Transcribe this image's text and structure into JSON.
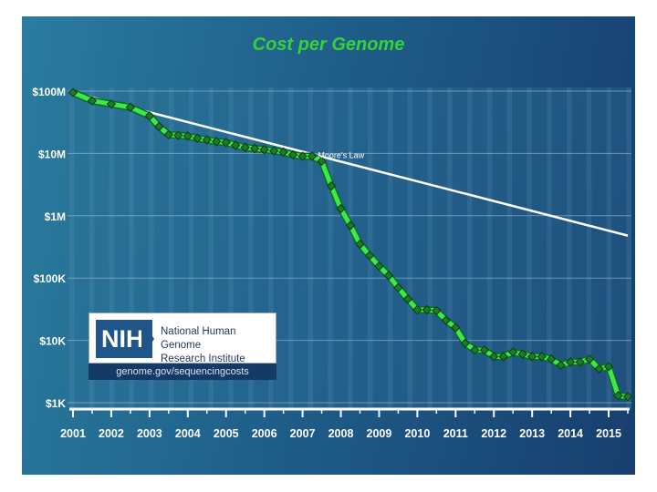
{
  "chart_data": {
    "type": "line",
    "title": "Cost per Genome",
    "scale": "log",
    "ylim": [
      1000,
      100000000
    ],
    "y_ticks": [
      {
        "value": 100000000,
        "label": "$100M"
      },
      {
        "value": 10000000,
        "label": "$10M"
      },
      {
        "value": 1000000,
        "label": "$1M"
      },
      {
        "value": 100000,
        "label": "$100K"
      },
      {
        "value": 10000,
        "label": "$10K"
      },
      {
        "value": 1000,
        "label": "$1K"
      }
    ],
    "xlim": [
      2001.0,
      2015.5
    ],
    "x_ticks": [
      "2001",
      "2002",
      "2003",
      "2004",
      "2005",
      "2006",
      "2007",
      "2008",
      "2009",
      "2010",
      "2011",
      "2012",
      "2013",
      "2014",
      "2015"
    ],
    "series": [
      {
        "name": "Cost per Genome",
        "color": "#3ee84a",
        "x": [
          2001.0,
          2001.5,
          2002.0,
          2002.5,
          2003.0,
          2003.25,
          2003.5,
          2003.75,
          2004.0,
          2004.25,
          2004.5,
          2004.75,
          2005.0,
          2005.25,
          2005.5,
          2005.75,
          2006.0,
          2006.25,
          2006.5,
          2006.75,
          2007.0,
          2007.25,
          2007.5,
          2007.75,
          2008.0,
          2008.25,
          2008.5,
          2008.75,
          2009.0,
          2009.25,
          2009.5,
          2009.75,
          2010.0,
          2010.25,
          2010.5,
          2010.75,
          2011.0,
          2011.25,
          2011.5,
          2011.75,
          2012.0,
          2012.25,
          2012.5,
          2012.75,
          2013.0,
          2013.25,
          2013.5,
          2013.75,
          2014.0,
          2014.25,
          2014.5,
          2014.75,
          2015.0,
          2015.25,
          2015.5
        ],
        "values": [
          95000000,
          70000000,
          62000000,
          55000000,
          40000000,
          27000000,
          20000000,
          19500000,
          19000000,
          17500000,
          16500000,
          15500000,
          15000000,
          13500000,
          12500000,
          12000000,
          11500000,
          11000000,
          10500000,
          9500000,
          9000000,
          9000000,
          7500000,
          3000000,
          1300000,
          700000,
          350000,
          230000,
          155000,
          110000,
          70000,
          46000,
          31000,
          31000,
          30000,
          21000,
          16000,
          9000,
          7000,
          7000,
          5500,
          5500,
          6500,
          6000,
          5500,
          5500,
          5000,
          4000,
          4500,
          4500,
          5000,
          3500,
          3800,
          1300,
          1250
        ]
      },
      {
        "name": "Moore's Law",
        "color": "#ffffff",
        "x": [
          2001.0,
          2015.5
        ],
        "values": [
          95000000,
          480000
        ]
      }
    ],
    "annotations": [
      {
        "text": "Moore's Law",
        "x": 2007.4,
        "value": 6900000
      }
    ]
  },
  "logo": {
    "mark": "NIH",
    "name_line1": "National Human Genome",
    "name_line2": "Research Institute",
    "url": "genome.gov/sequencingcosts"
  }
}
